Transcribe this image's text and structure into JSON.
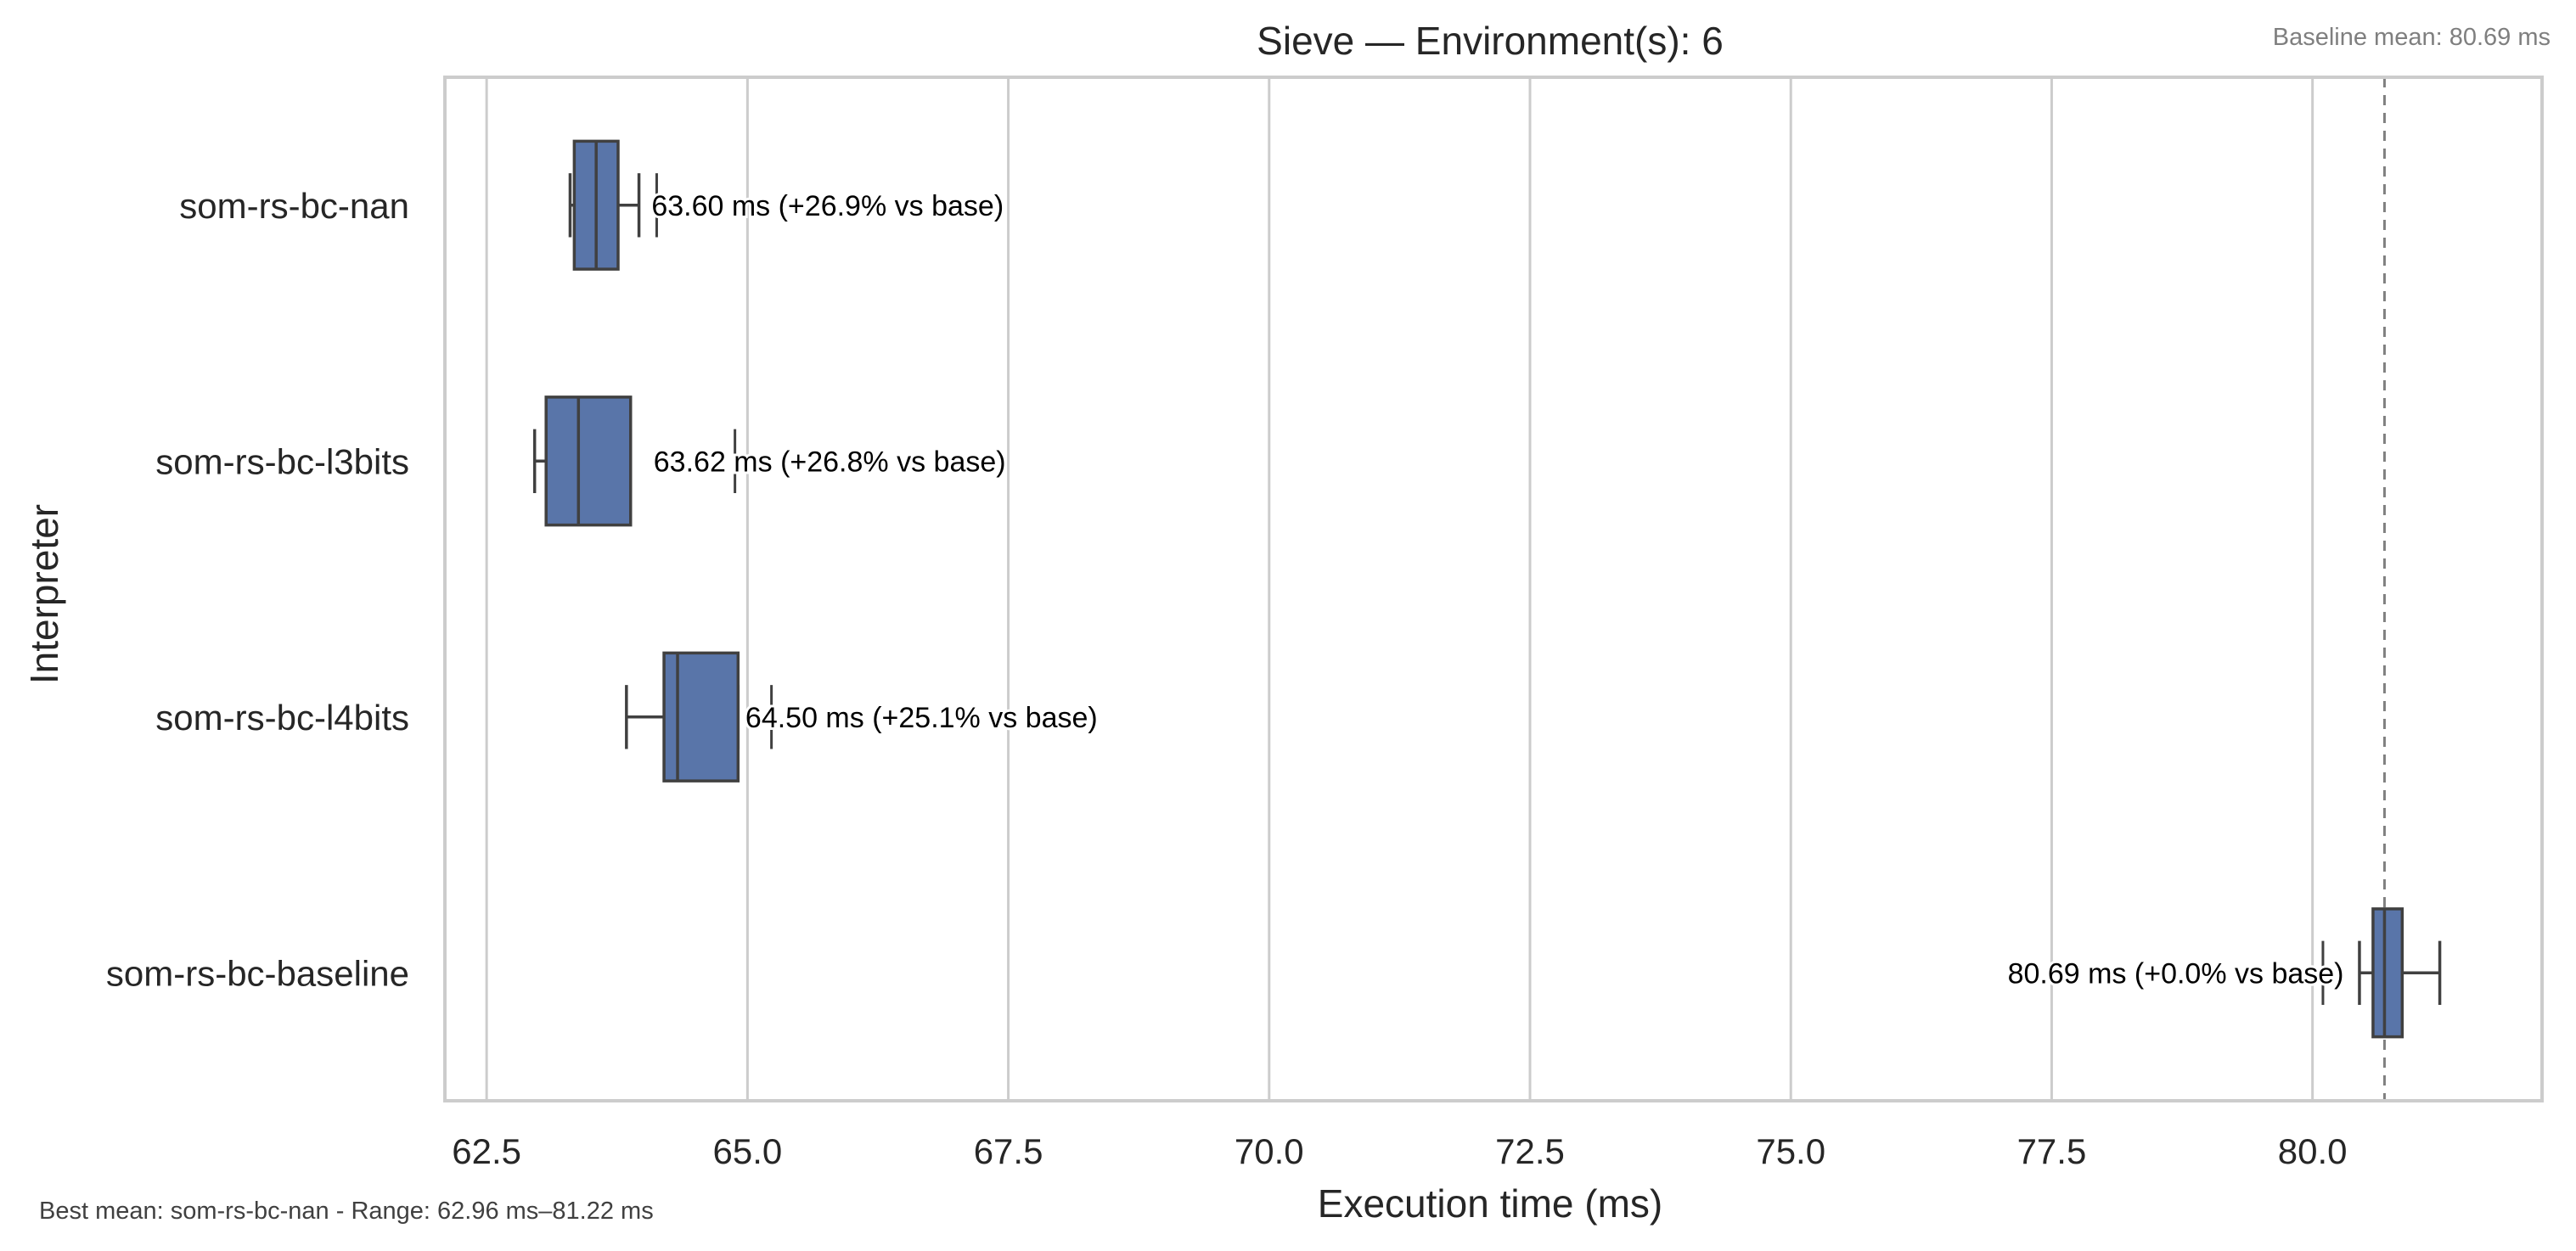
{
  "chart_data": {
    "type": "box",
    "orientation": "horizontal",
    "title": "Sieve — Environment(s): 6",
    "xlabel": "Execution time (ms)",
    "ylabel": "Interpreter",
    "xlim": [
      62.1,
      82.2
    ],
    "xticks": [
      62.5,
      65.0,
      67.5,
      70.0,
      72.5,
      75.0,
      77.5,
      80.0
    ],
    "xtick_labels": [
      "62.5",
      "65.0",
      "67.5",
      "70.0",
      "72.5",
      "75.0",
      "77.5",
      "80.0"
    ],
    "grid": "x",
    "box_color": "#5975a9",
    "edge_color": "#404040",
    "baseline_line": 80.69,
    "series": [
      {
        "name": "som-rs-bc-nan",
        "whisker_low": 63.3,
        "q1": 63.34,
        "median": 63.55,
        "q3": 63.76,
        "whisker_high": 63.96,
        "outliers": [
          64.13
        ],
        "annotation": "63.60 ms  (+26.9% vs base)",
        "annotation_x": 64.08
      },
      {
        "name": "som-rs-bc-l3bits",
        "whisker_low": 62.96,
        "q1": 63.07,
        "median": 63.38,
        "q3": 63.88,
        "whisker_high": 63.88,
        "outliers": [
          64.88
        ],
        "annotation": "63.62 ms  (+26.8% vs base)",
        "annotation_x": 64.1
      },
      {
        "name": "som-rs-bc-l4bits",
        "whisker_low": 63.84,
        "q1": 64.2,
        "median": 64.33,
        "q3": 64.91,
        "whisker_high": 64.91,
        "outliers": [
          65.23
        ],
        "annotation": "64.50 ms  (+25.1% vs base)",
        "annotation_x": 64.98
      },
      {
        "name": "som-rs-bc-baseline",
        "whisker_low": 80.45,
        "q1": 80.58,
        "median": 80.69,
        "q3": 80.86,
        "whisker_high": 81.22,
        "outliers": [
          80.1
        ],
        "annotation": "80.69 ms  (+0.0% vs base)",
        "annotation_x": 80.3
      }
    ],
    "notes": {
      "baseline": "Baseline mean: 80.69 ms",
      "summary": "Best mean: som-rs-bc-nan - Range: 62.96 ms–81.22 ms"
    }
  }
}
